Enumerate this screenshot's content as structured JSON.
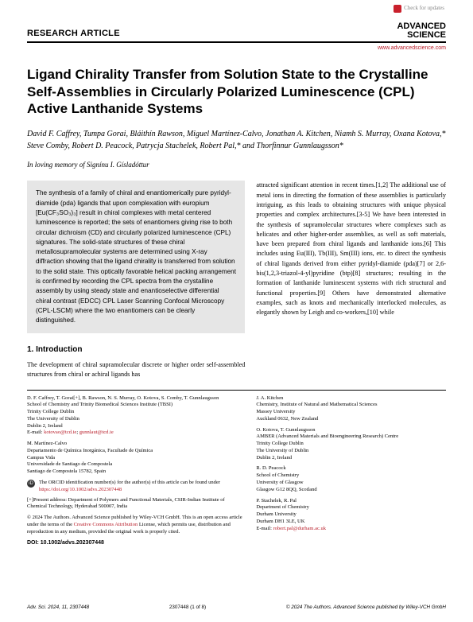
{
  "header": {
    "check_updates": "Check for updates",
    "article_type": "RESEARCH ARTICLE",
    "journal_line1": "ADVANCED",
    "journal_line2": "SCIENCE",
    "journal_url": "www.advancedscience.com"
  },
  "title": "Ligand Chirality Transfer from Solution State to the Crystalline Self-Assemblies in Circularly Polarized Luminescence (CPL) Active Lanthanide Systems",
  "authors": "David F. Caffrey, Tumpa Gorai, Bláithín Rawson, Miguel Martínez-Calvo, Jonathan A. Kitchen, Niamh S. Murray, Oxana Kotova,* Steve Comby, Robert D. Peacock, Patrycja Stachelek, Robert Pal,* and Thorfinnur Gunnlaugsson*",
  "dedication": "In loving memory of Signínu I. Gísladóttur",
  "abstract_text": "The synthesis of a family of chiral and enantiomerically pure pyridyl-diamide (pda) ligands that upon complexation with europium [Eu(CF₃SO₃)₃] result in chiral complexes with metal centered luminescence is reported; the sets of enantiomers giving rise to both circular dichroism (CD) and circularly polarized luminescence (CPL) signatures. The solid-state structures of these chiral metallosupramolecular systems are determined using X-ray diffraction showing that the ligand chirality is transferred from solution to the solid state. This optically favorable helical packing arrangement is confirmed by recording the CPL spectra from the crystalline assembly by using steady state and enantioselective differential chiral contrast (EDCC) CPL Laser Scanning Confocal Microscopy (CPL-LSCM) where the two enantiomers can be clearly distinguished.",
  "intro_heading": "1. Introduction",
  "intro_left": "The development of chiral supramolecular discrete or higher order self-assembled structures from chiral or achiral ligands has",
  "intro_right": "attracted significant attention in recent times.[1,2] The additional use of metal ions in directing the formation of these assemblies is particularly intriguing, as this leads to obtaining structures with unique physical properties and complex architectures.[3-5] We have been interested in the synthesis of supramolecular structures where complexes such as helicates and other higher-order assemblies, as well as soft materials, have been prepared from chiral ligands and lanthanide ions.[6] This includes using Eu(III), Tb(III), Sm(III) ions, etc. to direct the synthesis of chiral ligands derived from either pyridyl-diamide (pda)[7] or 2,6-bis(1,2,3-triazol-4-yl)pyridine (btp)[8] structures; resulting in the formation of lanthanide luminescent systems with rich structural and functional properties.[9] Others have demonstrated alternative examples, such as knots and mechanically interlocked molecules, as elegantly shown by Leigh and co-workers,[10] while",
  "affiliations": {
    "block1": "D. F. Caffrey, T. Gorai[+], B. Rawson, N. S. Murray, O. Kotova, S. Comby, T. Gunnlaugsson\nSchool of Chemistry and Trinity Biomedical Sciences Institute (TBSI)\nTrinity College Dublin\nThe University of Dublin\nDublin 2, Ireland\nE-mail: ",
    "email1a": "kotovao@tcd.ie",
    "email1b": "gunnlaut@tcd.ie",
    "block2": "M. Martínez-Calvo\nDepartamento de Química Inorgánica, Facultade de Química\nCampus Vida\nUniversidade de Santiago de Compostela\nSantiago de Compostela 15782, Spain",
    "orcid_text": "The ORCID identification number(s) for the author(s) of this article can be found under ",
    "orcid_link": "https://doi.org/10.1002/advs.202307448",
    "present_addr": "[+]Present address: Department of Polymers and Functional Materials, CSIR-Indian Institute of Chemical Technology, Hyderabad 500007, India",
    "copyright": "© 2024 The Authors. Advanced Science published by Wiley-VCH GmbH. This is an open access article under the terms of the ",
    "cc_link": "Creative Commons Attribution",
    "copyright2": " License, which permits use, distribution and reproduction in any medium, provided the original work is properly cited.",
    "doi": "DOI: 10.1002/advs.202307448",
    "block3": "J. A. Kitchen\nChemistry, Institute of Natural and Mathematical Sciences\nMassey University\nAuckland 0632, New Zealand",
    "block4": "O. Kotova, T. Gunnlaugsson\nAMBER (Advanced Materials and Bioengineering Research) Centre\nTrinity College Dublin\nThe University of Dublin\nDublin 2, Ireland",
    "block5": "R. D. Peacock\nSchool of Chemistry\nUniversity of Glasgow\nGlasgow G12 8QQ, Scotland",
    "block6": "P. Stachelek, R. Pal\nDepartment of Chemistry\nDurham University\nDurham DH1 3LE, UK\nE-mail: ",
    "email6": "robert.pal@durham.ac.uk"
  },
  "footer": {
    "left": "Adv. Sci. 2024, 11, 2307448",
    "center": "2307448 (1 of 8)",
    "right": "© 2024 The Authors. Advanced Science published by Wiley-VCH GmbH"
  }
}
